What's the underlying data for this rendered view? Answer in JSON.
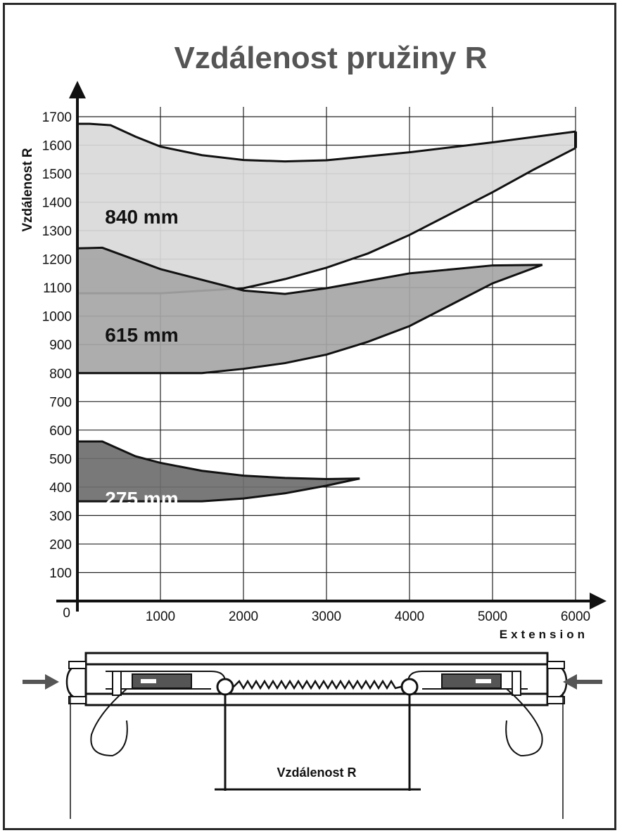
{
  "chart_data": {
    "type": "area",
    "title": "Vzdálenost pružiny R",
    "xlabel": "Extension",
    "ylabel": "Vzdálenost R",
    "xlim": [
      0,
      6000
    ],
    "ylim": [
      0,
      1700
    ],
    "x_ticks": [
      0,
      1000,
      2000,
      3000,
      4000,
      5000,
      6000
    ],
    "y_ticks": [
      0,
      100,
      200,
      300,
      400,
      500,
      600,
      700,
      800,
      900,
      1000,
      1100,
      1200,
      1300,
      1400,
      1500,
      1600,
      1700
    ],
    "grid": true,
    "bands": [
      {
        "label": "840 mm",
        "color": "#d9d9d9",
        "label_color": "#111111",
        "label_pos": [
          350,
          1350
        ],
        "upper": [
          [
            0,
            1675
          ],
          [
            150,
            1675
          ],
          [
            400,
            1670
          ],
          [
            700,
            1630
          ],
          [
            1000,
            1595
          ],
          [
            1500,
            1565
          ],
          [
            2000,
            1548
          ],
          [
            2500,
            1543
          ],
          [
            3000,
            1547
          ],
          [
            4000,
            1575
          ],
          [
            5000,
            1610
          ],
          [
            6000,
            1648
          ]
        ],
        "lower": [
          [
            0,
            1080
          ],
          [
            1000,
            1080
          ],
          [
            2000,
            1098
          ],
          [
            2500,
            1130
          ],
          [
            3000,
            1170
          ],
          [
            3500,
            1220
          ],
          [
            4000,
            1285
          ],
          [
            4500,
            1360
          ],
          [
            5000,
            1435
          ],
          [
            5500,
            1515
          ],
          [
            6000,
            1590
          ]
        ]
      },
      {
        "label": "615 mm",
        "color": "#a6a6a6",
        "label_color": "#111111",
        "label_pos": [
          350,
          935
        ],
        "upper": [
          [
            0,
            1238
          ],
          [
            300,
            1240
          ],
          [
            1000,
            1165
          ],
          [
            2000,
            1090
          ],
          [
            2500,
            1078
          ],
          [
            3000,
            1098
          ],
          [
            4000,
            1150
          ],
          [
            5000,
            1178
          ],
          [
            5600,
            1180
          ]
        ],
        "lower": [
          [
            0,
            800
          ],
          [
            1500,
            800
          ],
          [
            2000,
            815
          ],
          [
            2500,
            835
          ],
          [
            3000,
            865
          ],
          [
            3500,
            910
          ],
          [
            4000,
            965
          ],
          [
            4500,
            1040
          ],
          [
            5000,
            1115
          ],
          [
            5600,
            1180
          ]
        ]
      },
      {
        "label": "275 mm",
        "color": "#6e6e6e",
        "label_color": "#ffffff",
        "label_pos": [
          350,
          360
        ],
        "upper": [
          [
            0,
            560
          ],
          [
            300,
            560
          ],
          [
            700,
            508
          ],
          [
            1000,
            485
          ],
          [
            1500,
            457
          ],
          [
            2000,
            440
          ],
          [
            2500,
            432
          ],
          [
            3000,
            428
          ],
          [
            3400,
            430
          ]
        ],
        "lower": [
          [
            0,
            350
          ],
          [
            1500,
            350
          ],
          [
            2000,
            360
          ],
          [
            2500,
            378
          ],
          [
            3000,
            405
          ],
          [
            3400,
            430
          ]
        ]
      }
    ]
  },
  "diagram": {
    "label": "Vzdálenost R"
  }
}
